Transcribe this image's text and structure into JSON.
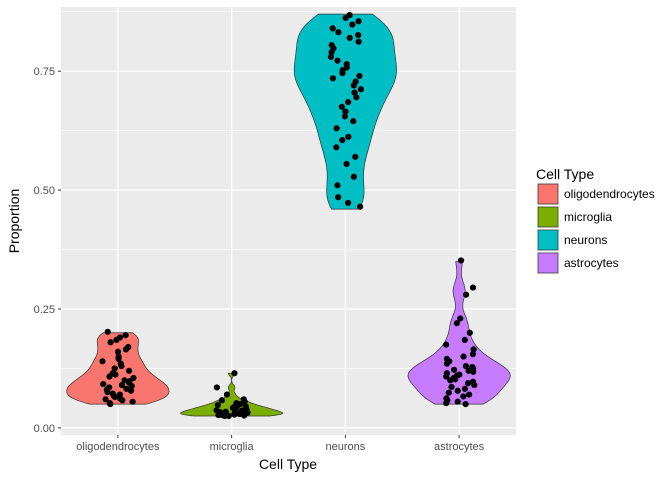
{
  "chart_data": {
    "type": "violin",
    "title": "",
    "xlabel": "Cell Type",
    "ylabel": "Proportion",
    "ylim": [
      -0.015,
      0.885
    ],
    "yticks": [
      0.0,
      0.25,
      0.5,
      0.75
    ],
    "ytick_labels": [
      "0.00",
      "0.25",
      "0.50",
      "0.75"
    ],
    "categories": [
      "oligodendrocytes",
      "microglia",
      "neurons",
      "astrocytes"
    ],
    "legend": {
      "title": "Cell Type",
      "placement": "right",
      "entries": [
        "oligodendrocytes",
        "microglia",
        "neurons",
        "astrocytes"
      ]
    },
    "panel_background": "#ebebeb",
    "grid": true,
    "colors": [
      "#f8766d",
      "#7cae00",
      "#00bfc4",
      "#c77cff"
    ],
    "series": [
      {
        "category": "oligodendrocytes",
        "min": 0.05,
        "max": 0.2,
        "points": [
          0.202,
          0.195,
          0.19,
          0.185,
          0.18,
          0.17,
          0.165,
          0.16,
          0.15,
          0.145,
          0.14,
          0.135,
          0.13,
          0.125,
          0.12,
          0.115,
          0.112,
          0.108,
          0.105,
          0.1,
          0.098,
          0.095,
          0.092,
          0.09,
          0.088,
          0.085,
          0.082,
          0.08,
          0.078,
          0.075,
          0.072,
          0.07,
          0.068,
          0.065,
          0.062,
          0.06,
          0.058,
          0.055,
          0.052,
          0.05
        ]
      },
      {
        "category": "microglia",
        "min": 0.025,
        "max": 0.115,
        "points": [
          0.115,
          0.085,
          0.07,
          0.06,
          0.058,
          0.055,
          0.052,
          0.05,
          0.048,
          0.046,
          0.045,
          0.044,
          0.042,
          0.041,
          0.04,
          0.039,
          0.038,
          0.037,
          0.036,
          0.035,
          0.034,
          0.033,
          0.032,
          0.031,
          0.03,
          0.03,
          0.029,
          0.028,
          0.028,
          0.027,
          0.027,
          0.026,
          0.026,
          0.025,
          0.025
        ]
      },
      {
        "category": "neurons",
        "min": 0.46,
        "max": 0.87,
        "points": [
          0.868,
          0.862,
          0.855,
          0.848,
          0.84,
          0.832,
          0.826,
          0.82,
          0.812,
          0.805,
          0.798,
          0.79,
          0.78,
          0.772,
          0.765,
          0.758,
          0.752,
          0.746,
          0.74,
          0.735,
          0.728,
          0.72,
          0.712,
          0.705,
          0.695,
          0.685,
          0.675,
          0.665,
          0.655,
          0.645,
          0.63,
          0.612,
          0.605,
          0.59,
          0.57,
          0.555,
          0.528,
          0.51,
          0.485,
          0.473,
          0.465
        ]
      },
      {
        "category": "astrocytes",
        "min": 0.05,
        "max": 0.35,
        "points": [
          0.352,
          0.295,
          0.28,
          0.23,
          0.22,
          0.2,
          0.185,
          0.175,
          0.165,
          0.155,
          0.15,
          0.145,
          0.14,
          0.135,
          0.13,
          0.128,
          0.125,
          0.122,
          0.12,
          0.118,
          0.115,
          0.112,
          0.11,
          0.108,
          0.105,
          0.102,
          0.1,
          0.097,
          0.094,
          0.09,
          0.086,
          0.082,
          0.078,
          0.074,
          0.07,
          0.066,
          0.062,
          0.058,
          0.055,
          0.052,
          0.05
        ]
      }
    ]
  }
}
